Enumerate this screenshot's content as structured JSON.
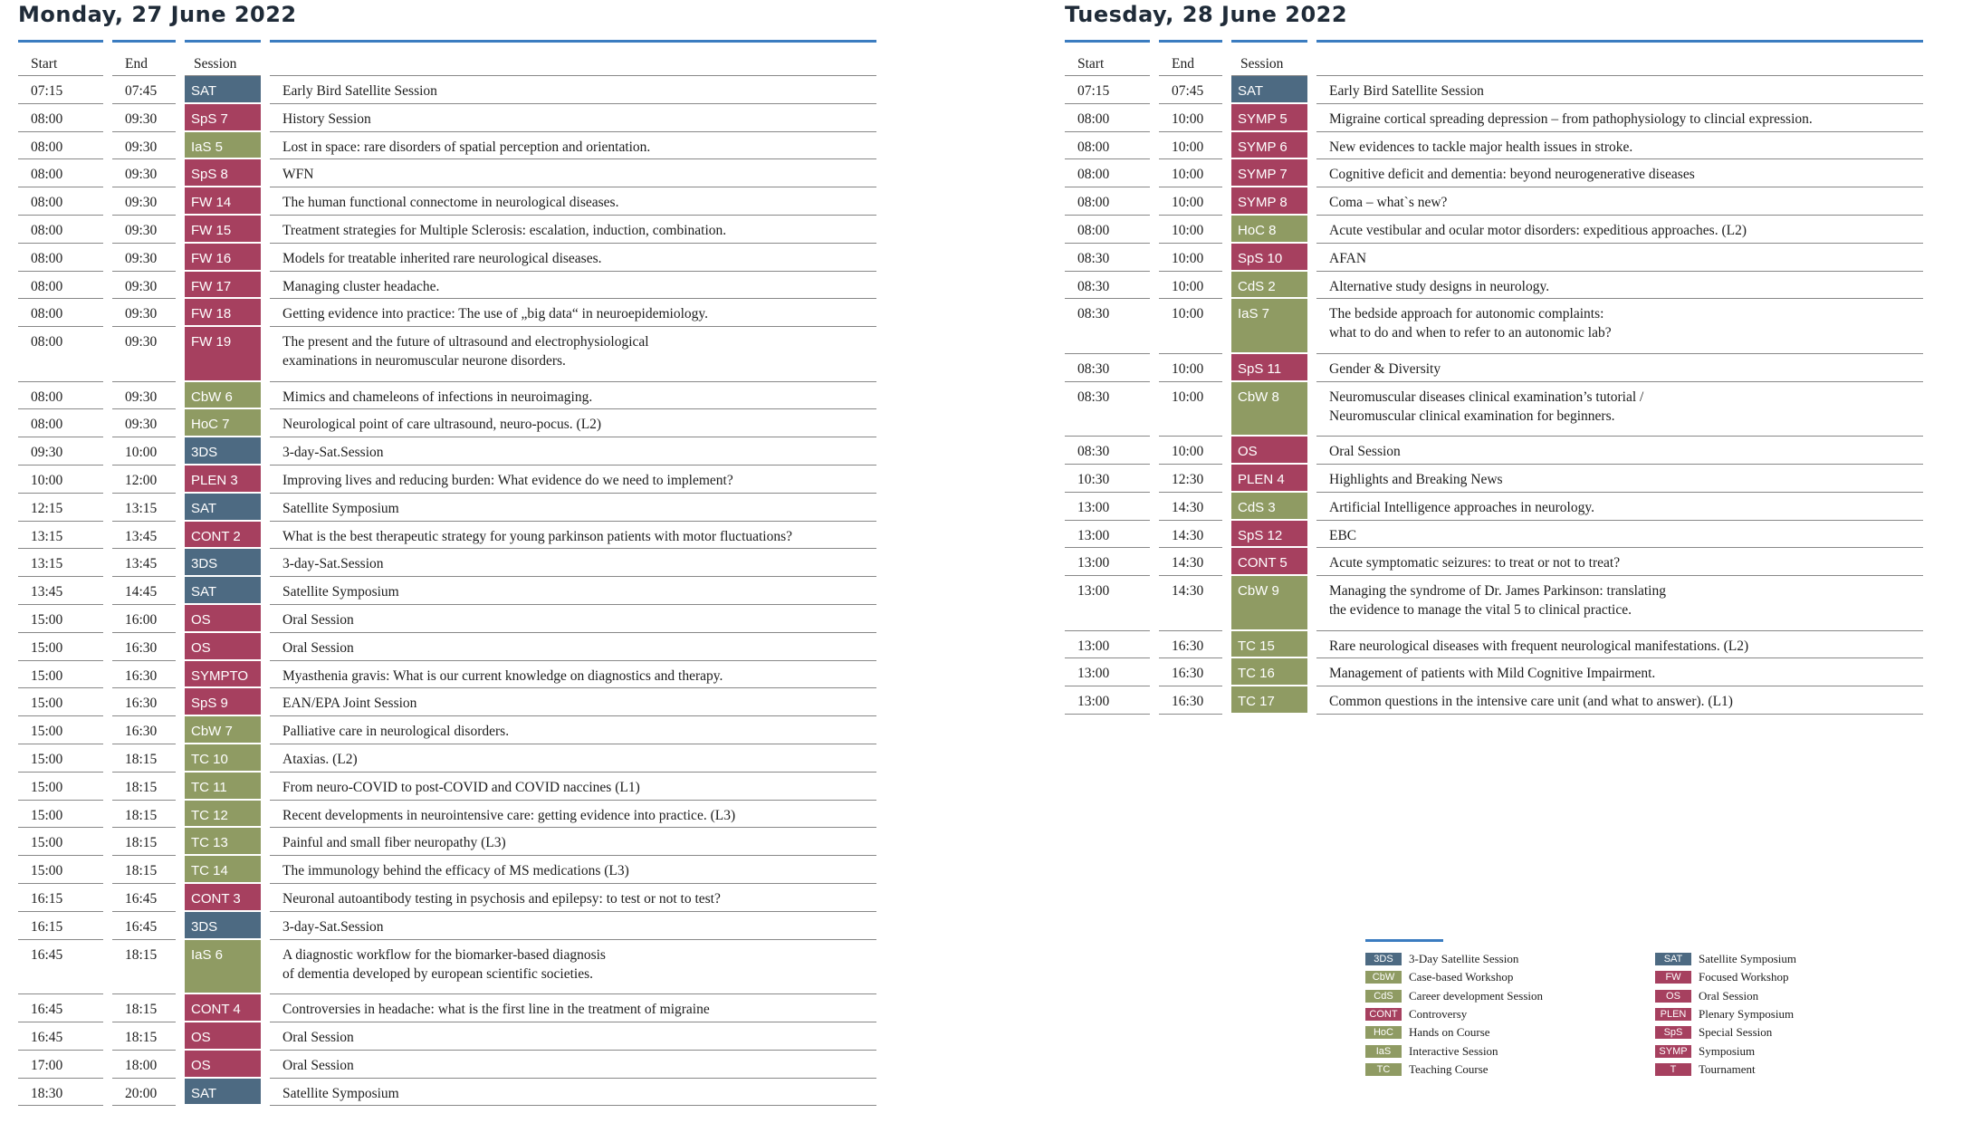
{
  "days": [
    {
      "title": "Monday, 27 June 2022",
      "headers": [
        "Start",
        "End",
        "Session"
      ],
      "rows": [
        [
          "07:15",
          "07:45",
          "SAT",
          "Early Bird Satellite Session"
        ],
        [
          "08:00",
          "09:30",
          "SpS 7",
          "History Session"
        ],
        [
          "08:00",
          "09:30",
          "IaS 5",
          "Lost in space: rare disorders of spatial perception and orientation."
        ],
        [
          "08:00",
          "09:30",
          "SpS 8",
          "WFN"
        ],
        [
          "08:00",
          "09:30",
          "FW 14",
          "The human functional connectome in neurological diseases."
        ],
        [
          "08:00",
          "09:30",
          "FW 15",
          "Treatment strategies for Multiple Sclerosis: escalation, induction, combination."
        ],
        [
          "08:00",
          "09:30",
          "FW 16",
          "Models for treatable inherited rare neurological diseases."
        ],
        [
          "08:00",
          "09:30",
          "FW 17",
          "Managing cluster headache."
        ],
        [
          "08:00",
          "09:30",
          "FW 18",
          "Getting evidence into practice: The use of „big data“ in neuroepidemiology."
        ],
        [
          "08:00",
          "09:30",
          "FW 19",
          "The present and the future of ultrasound and electrophysiological\nexaminations in neuromuscular neurone disorders."
        ],
        [
          "08:00",
          "09:30",
          "CbW 6",
          "Mimics and chameleons of infections in neuroimaging."
        ],
        [
          "08:00",
          "09:30",
          "HoC 7",
          "Neurological point of care ultrasound, neuro-pocus. (L2)"
        ],
        [
          "09:30",
          "10:00",
          "3DS",
          "3-day-Sat.Session"
        ],
        [
          "10:00",
          "12:00",
          "PLEN 3",
          "Improving lives and reducing burden: What evidence do we need to implement?"
        ],
        [
          "12:15",
          "13:15",
          "SAT",
          "Satellite Symposium"
        ],
        [
          "13:15",
          "13:45",
          "CONT 2",
          "What is the best therapeutic strategy for young parkinson patients with motor fluctuations?"
        ],
        [
          "13:15",
          "13:45",
          "3DS",
          "3-day-Sat.Session"
        ],
        [
          "13:45",
          "14:45",
          "SAT",
          "Satellite Symposium"
        ],
        [
          "15:00",
          "16:00",
          "OS",
          "Oral Session"
        ],
        [
          "15:00",
          "16:30",
          "OS",
          "Oral Session"
        ],
        [
          "15:00",
          "16:30",
          "SYMPTO",
          "Myasthenia gravis: What is our current knowledge on diagnostics and therapy."
        ],
        [
          "15:00",
          "16:30",
          "SpS 9",
          "EAN/EPA Joint Session"
        ],
        [
          "15:00",
          "16:30",
          "CbW 7",
          "Palliative care in neurological disorders."
        ],
        [
          "15:00",
          "18:15",
          "TC 10",
          "Ataxias. (L2)"
        ],
        [
          "15:00",
          "18:15",
          "TC 11",
          "From neuro-COVID to post-COVID and COVID naccines (L1)"
        ],
        [
          "15:00",
          "18:15",
          "TC 12",
          "Recent developments in neurointensive care: getting evidence into practice. (L3)"
        ],
        [
          "15:00",
          "18:15",
          "TC 13",
          "Painful and small fiber neuropathy (L3)"
        ],
        [
          "15:00",
          "18:15",
          "TC 14",
          "The immunology behind the efficacy of MS medications (L3)"
        ],
        [
          "16:15",
          "16:45",
          "CONT 3",
          "Neuronal autoantibody testing in psychosis and epilepsy: to test or not to test?"
        ],
        [
          "16:15",
          "16:45",
          "3DS",
          "3-day-Sat.Session"
        ],
        [
          "16:45",
          "18:15",
          "IaS 6",
          "A diagnostic workflow for the biomarker-based diagnosis\nof dementia developed by european scientific societies."
        ],
        [
          "16:45",
          "18:15",
          "CONT 4",
          "Controversies in headache: what is the first line in the treatment of migraine"
        ],
        [
          "16:45",
          "18:15",
          "OS",
          "Oral Session"
        ],
        [
          "17:00",
          "18:00",
          "OS",
          "Oral Session"
        ],
        [
          "18:30",
          "20:00",
          "SAT",
          "Satellite Symposium"
        ]
      ]
    },
    {
      "title": "Tuesday, 28 June 2022",
      "headers": [
        "Start",
        "End",
        "Session"
      ],
      "rows": [
        [
          "07:15",
          "07:45",
          "SAT",
          "Early Bird Satellite Session"
        ],
        [
          "08:00",
          "10:00",
          "SYMP 5",
          "Migraine cortical spreading depression – from pathophysiology to clincial expression."
        ],
        [
          "08:00",
          "10:00",
          "SYMP 6",
          "New evidences to tackle major health issues in stroke."
        ],
        [
          "08:00",
          "10:00",
          "SYMP 7",
          "Cognitive deficit and dementia: beyond neurogenerative diseases"
        ],
        [
          "08:00",
          "10:00",
          "SYMP 8",
          "Coma – what`s new?"
        ],
        [
          "08:00",
          "10:00",
          "HoC 8",
          "Acute vestibular and ocular motor disorders: expeditious approaches. (L2)"
        ],
        [
          "08:30",
          "10:00",
          "SpS 10",
          "AFAN"
        ],
        [
          "08:30",
          "10:00",
          "CdS 2",
          "Alternative study designs in neurology."
        ],
        [
          "08:30",
          "10:00",
          "IaS 7",
          "The bedside approach for autonomic complaints:\nwhat to do and when to refer to an autonomic lab?"
        ],
        [
          "08:30",
          "10:00",
          "SpS 11",
          "Gender & Diversity"
        ],
        [
          "08:30",
          "10:00",
          "CbW 8",
          "Neuromuscular diseases clinical examination’s tutorial /\nNeuromuscular clinical examination for beginners."
        ],
        [
          "08:30",
          "10:00",
          "OS",
          "Oral Session"
        ],
        [
          "10:30",
          "12:30",
          "PLEN 4",
          "Highlights and Breaking News"
        ],
        [
          "13:00",
          "14:30",
          "CdS 3",
          "Artificial Intelligence approaches in neurology."
        ],
        [
          "13:00",
          "14:30",
          "SpS 12",
          "EBC"
        ],
        [
          "13:00",
          "14:30",
          "CONT 5",
          "Acute symptomatic seizures: to treat or not to treat?"
        ],
        [
          "13:00",
          "14:30",
          "CbW 9",
          "Managing the syndrome of Dr. James Parkinson: translating\nthe evidence to manage the vital 5 to clinical practice."
        ],
        [
          "13:00",
          "16:30",
          "TC 15",
          "Rare neurological diseases with frequent neurological manifestations. (L2)"
        ],
        [
          "13:00",
          "16:30",
          "TC 16",
          "Management of patients with Mild Cognitive Impairment."
        ],
        [
          "13:00",
          "16:30",
          "TC 17",
          "Common questions in the intensive care unit (and what to answer). (L1)"
        ]
      ]
    }
  ],
  "legend": [
    {
      "code": "3DS",
      "label": "3-Day Satellite Session",
      "color": "#4d6a82"
    },
    {
      "code": "CbW",
      "label": "Case-based Workshop",
      "color": "#8f9b63"
    },
    {
      "code": "CdS",
      "label": "Career development Session",
      "color": "#8f9b63"
    },
    {
      "code": "CONT",
      "label": "Controversy",
      "color": "#a6405f"
    },
    {
      "code": "HoC",
      "label": "Hands on Course",
      "color": "#8f9b63"
    },
    {
      "code": "IaS",
      "label": "Interactive Session",
      "color": "#8f9b63"
    },
    {
      "code": "TC",
      "label": "Teaching Course",
      "color": "#8f9b63"
    },
    {
      "code": "SAT",
      "label": "Satellite Symposium",
      "color": "#4d6a82"
    },
    {
      "code": "FW",
      "label": "Focused Workshop",
      "color": "#a6405f"
    },
    {
      "code": "OS",
      "label": "Oral Session",
      "color": "#a6405f"
    },
    {
      "code": "PLEN",
      "label": "Plenary Symposium",
      "color": "#a6405f"
    },
    {
      "code": "SpS",
      "label": "Special Session",
      "color": "#a6405f"
    },
    {
      "code": "SYMP",
      "label": "Symposium",
      "color": "#a6405f"
    },
    {
      "code": "T",
      "label": "Tournament",
      "color": "#a6405f"
    }
  ]
}
